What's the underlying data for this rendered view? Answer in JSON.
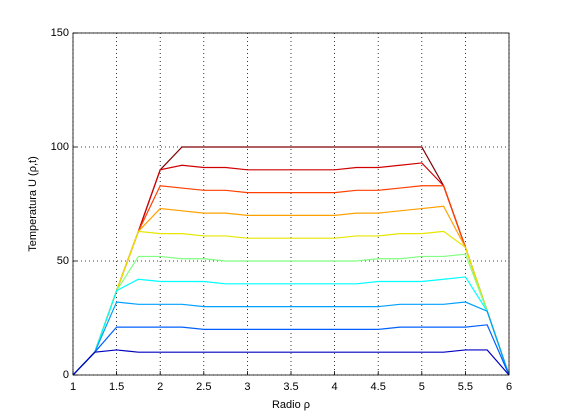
{
  "chart_data": {
    "type": "line",
    "x_label": "Radio ρ",
    "y_label": "Temperatura U (ρ,t)",
    "x": [
      1,
      1.25,
      1.5,
      1.75,
      2,
      2.25,
      2.5,
      2.75,
      3,
      3.25,
      3.5,
      3.75,
      4,
      4.25,
      4.5,
      4.75,
      5,
      5.25,
      5.5,
      5.75,
      6
    ],
    "series": [
      {
        "color": "#800000",
        "values": [
          0,
          10,
          37,
          63,
          90,
          100,
          100,
          100,
          100,
          100,
          100,
          100,
          100,
          100,
          100,
          100,
          100,
          83,
          56,
          28,
          0
        ]
      },
      {
        "color": "#d00000",
        "values": [
          0,
          10,
          37,
          63,
          90,
          92,
          91,
          91,
          90,
          90,
          90,
          90,
          90,
          91,
          91,
          92,
          93,
          83,
          56,
          28,
          0
        ]
      },
      {
        "color": "#ff4000",
        "values": [
          0,
          10,
          37,
          63,
          83,
          82,
          81,
          81,
          80,
          80,
          80,
          80,
          80,
          81,
          81,
          82,
          83,
          83,
          56,
          28,
          0
        ]
      },
      {
        "color": "#ffa000",
        "values": [
          0,
          10,
          37,
          63,
          73,
          72,
          71,
          71,
          70,
          70,
          70,
          70,
          70,
          71,
          71,
          72,
          73,
          74,
          56,
          28,
          0
        ]
      },
      {
        "color": "#e6e600",
        "values": [
          0,
          10,
          37,
          63,
          62,
          62,
          61,
          61,
          60,
          60,
          60,
          60,
          60,
          61,
          61,
          62,
          62,
          63,
          56,
          28,
          0
        ]
      },
      {
        "color": "#80ff80",
        "values": [
          0,
          10,
          37,
          52,
          52,
          51,
          51,
          50,
          50,
          50,
          50,
          50,
          50,
          50,
          51,
          51,
          52,
          52,
          53,
          28,
          0
        ]
      },
      {
        "color": "#00ffff",
        "values": [
          0,
          10,
          37,
          42,
          41,
          41,
          41,
          40,
          40,
          40,
          40,
          40,
          40,
          40,
          41,
          41,
          41,
          42,
          43,
          28,
          0
        ]
      },
      {
        "color": "#00a0ff",
        "values": [
          0,
          10,
          32,
          31,
          31,
          31,
          30,
          30,
          30,
          30,
          30,
          30,
          30,
          30,
          30,
          31,
          31,
          31,
          32,
          28,
          0
        ]
      },
      {
        "color": "#0060ff",
        "values": [
          0,
          10,
          21,
          21,
          21,
          21,
          20,
          20,
          20,
          20,
          20,
          20,
          20,
          20,
          20,
          21,
          21,
          21,
          21,
          22,
          0
        ]
      },
      {
        "color": "#0000c0",
        "values": [
          0,
          10,
          11,
          10,
          10,
          10,
          10,
          10,
          10,
          10,
          10,
          10,
          10,
          10,
          10,
          10,
          10,
          10,
          11,
          11,
          0
        ]
      }
    ],
    "xlim": [
      1,
      6
    ],
    "xticks": [
      1,
      1.5,
      2,
      2.5,
      3,
      3.5,
      4,
      4.5,
      5,
      5.5,
      6
    ],
    "ylim": [
      0,
      150
    ],
    "yticks": [
      0,
      50,
      100,
      150
    ],
    "grid": true
  }
}
